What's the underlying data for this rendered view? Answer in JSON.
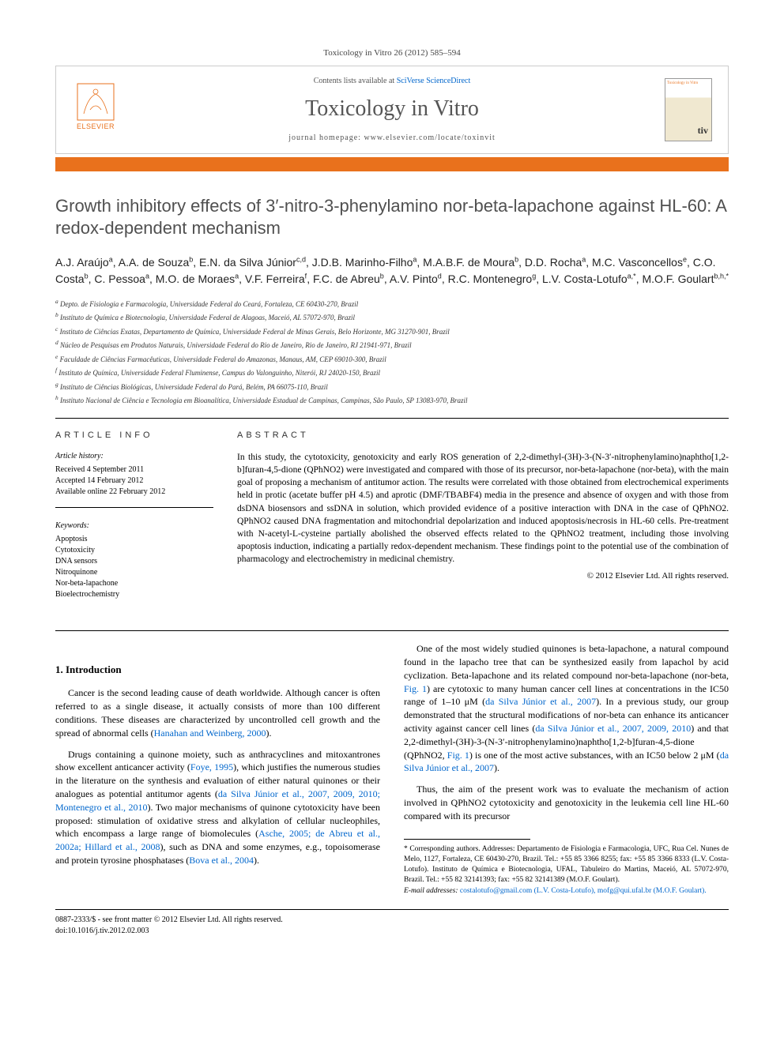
{
  "journalRef": "Toxicology in Vitro 26 (2012) 585–594",
  "header": {
    "contentsPrefix": "Contents lists available at",
    "contentsLink": "SciVerse ScienceDirect",
    "journalTitle": "Toxicology in Vitro",
    "homepagePrefix": "journal homepage:",
    "homepageUrl": "www.elsevier.com/locate/toxinvit",
    "publisher": "ELSEVIER",
    "coverTop": "Toxicology in Vitro",
    "coverAbbr": "tiv"
  },
  "title": "Growth inhibitory effects of 3′-nitro-3-phenylamino nor-beta-lapachone against HL-60: A redox-dependent mechanism",
  "authors": "A.J. Araújo<sup>a</sup>, A.A. de Souza<sup>b</sup>, E.N. da Silva Júnior<sup>c,d</sup>, J.D.B. Marinho-Filho<sup>a</sup>, M.A.B.F. de Moura<sup>b</sup>, D.D. Rocha<sup>a</sup>, M.C. Vasconcellos<sup>e</sup>, C.O. Costa<sup>b</sup>, C. Pessoa<sup>a</sup>, M.O. de Moraes<sup>a</sup>, V.F. Ferreira<sup>f</sup>, F.C. de Abreu<sup>b</sup>, A.V. Pinto<sup>d</sup>, R.C. Montenegro<sup>g</sup>, L.V. Costa-Lotufo<sup>a,*</sup>, M.O.F. Goulart<sup>b,h,*</sup>",
  "affiliations": [
    "a Depto. de Fisiologia e Farmacologia, Universidade Federal do Ceará, Fortaleza, CE 60430-270, Brazil",
    "b Instituto de Química e Biotecnologia, Universidade Federal de Alagoas, Maceió, AL 57072-970, Brazil",
    "c Instituto de Ciências Exatas, Departamento de Química, Universidade Federal de Minas Gerais, Belo Horizonte, MG 31270-901, Brazil",
    "d Núcleo de Pesquisas em Produtos Naturais, Universidade Federal do Rio de Janeiro, Rio de Janeiro, RJ 21941-971, Brazil",
    "e Faculdade de Ciências Farmacêuticas, Universidade Federal do Amazonas, Manaus, AM, CEP 69010-300, Brazil",
    "f Instituto de Química, Universidade Federal Fluminense, Campus do Valonguinho, Niterói, RJ 24020-150, Brazil",
    "g Instituto de Ciências Biológicas, Universidade Federal do Pará, Belém, PA 66075-110, Brazil",
    "h Instituto Nacional de Ciência e Tecnologia em Bioanalítica, Universidade Estadual de Campinas, Campinas, São Paulo, SP 13083-970, Brazil"
  ],
  "articleInfo": {
    "heading": "ARTICLE INFO",
    "historyHeading": "Article history:",
    "history": [
      "Received 4 September 2011",
      "Accepted 14 February 2012",
      "Available online 22 February 2012"
    ],
    "keywordsHeading": "Keywords:",
    "keywords": [
      "Apoptosis",
      "Cytotoxicity",
      "DNA sensors",
      "Nitroquinone",
      "Nor-beta-lapachone",
      "Bioelectrochemistry"
    ]
  },
  "abstract": {
    "heading": "ABSTRACT",
    "text": "In this study, the cytotoxicity, genotoxicity and early ROS generation of 2,2-dimethyl-(3H)-3-(N-3′-nitrophenylamino)naphtho[1,2-b]furan-4,5-dione (QPhNO2) were investigated and compared with those of its precursor, nor-beta-lapachone (nor-beta), with the main goal of proposing a mechanism of antitumor action. The results were correlated with those obtained from electrochemical experiments held in protic (acetate buffer pH 4.5) and aprotic (DMF/TBABF4) media in the presence and absence of oxygen and with those from dsDNA biosensors and ssDNA in solution, which provided evidence of a positive interaction with DNA in the case of QPhNO2. QPhNO2 caused DNA fragmentation and mitochondrial depolarization and induced apoptosis/necrosis in HL-60 cells. Pre-treatment with N-acetyl-L-cysteine partially abolished the observed effects related to the QPhNO2 treatment, including those involving apoptosis induction, indicating a partially redox-dependent mechanism. These findings point to the potential use of the combination of pharmacology and electrochemistry in medicinal chemistry.",
    "copyright": "© 2012 Elsevier Ltd. All rights reserved."
  },
  "introHeading": "1. Introduction",
  "paragraphs": [
    "Cancer is the second leading cause of death worldwide. Although cancer is often referred to as a single disease, it actually consists of more than 100 different conditions. These diseases are characterized by uncontrolled cell growth and the spread of abnormal cells (<span class='cite'>Hanahan and Weinberg, 2000</span>).",
    "Drugs containing a quinone moiety, such as anthracyclines and mitoxantrones show excellent anticancer activity (<span class='cite'>Foye, 1995</span>), which justifies the numerous studies in the literature on the synthesis and evaluation of either natural quinones or their analogues as potential antitumor agents (<span class='cite'>da Silva Júnior et al., 2007, 2009, 2010; Montenegro et al., 2010</span>). Two major mechanisms of quinone cytotoxicity have been proposed: stimulation of oxidative stress and alkylation of cellular nucleophiles, which encompass a large range of biomolecules (<span class='cite'>Asche, 2005; de Abreu et al., 2002a; Hillard et al., 2008</span>), such as DNA and some enzymes, e.g., topoisomerase and protein tyrosine phosphatases (<span class='cite'>Bova et al., 2004</span>).",
    "One of the most widely studied quinones is beta-lapachone, a natural compound found in the lapacho tree that can be synthesized easily from lapachol by acid cyclization. Beta-lapachone and its related compound nor-beta-lapachone (nor-beta, <span class='cite'>Fig. 1</span>) are cytotoxic to many human cancer cell lines at concentrations in the IC50 range of 1–10 μM (<span class='cite'>da Silva Júnior et al., 2007</span>). In a previous study, our group demonstrated that the structural modifications of nor-beta can enhance its anticancer activity against cancer cell lines (<span class='cite'>da Silva Júnior et al., 2007, 2009, 2010</span>) and that 2,2-dimethyl-(3H)-3-(N-3′-nitrophenylamino)naphtho[1,2-b]furan-4,5-dione (QPhNO2, <span class='cite'>Fig. 1</span>) is one of the most active substances, with an IC50 below 2 μM (<span class='cite'>da Silva Júnior et al., 2007</span>).",
    "Thus, the aim of the present work was to evaluate the mechanism of action involved in QPhNO2 cytotoxicity and genotoxicity in the leukemia cell line HL-60 compared with its precursor"
  ],
  "footnotes": {
    "corr": "* Corresponding authors. Addresses: Departamento de Fisiologia e Farmacologia, UFC, Rua Cel. Nunes de Melo, 1127, Fortaleza, CE 60430-270, Brazil. Tel.: +55 85 3366 8255; fax: +55 85 3366 8333 (L.V. Costa-Lotufo). Instituto de Química e Biotecnologia, UFAL, Tabuleiro do Martins, Maceió, AL 57072-970, Brazil. Tel.: +55 82 32141393; fax: +55 82 32141389 (M.O.F. Goulart).",
    "emailLabel": "E-mail addresses:",
    "emails": "costalotufo@gmail.com (L.V. Costa-Lotufo), mofg@qui.ufal.br (M.O.F. Goulart)."
  },
  "footer": {
    "issn": "0887-2333/$ - see front matter © 2012 Elsevier Ltd. All rights reserved.",
    "doi": "doi:10.1016/j.tiv.2012.02.003"
  },
  "colors": {
    "orange": "#e9711c",
    "link": "#0066cc",
    "text": "#000000",
    "grayTitle": "#505050"
  }
}
